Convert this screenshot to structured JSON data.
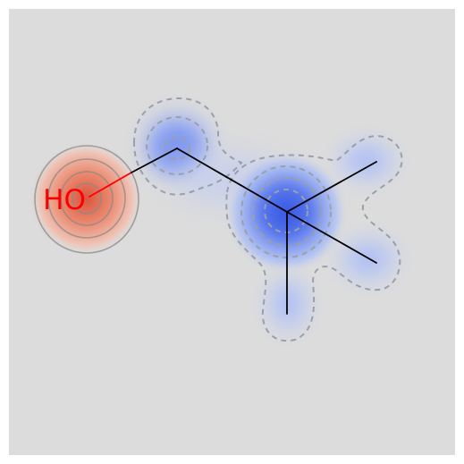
{
  "molecule": {
    "atom_labels": [
      {
        "id": "hydroxyl",
        "text": "HO",
        "color": "#ff0000"
      }
    ]
  },
  "colors": {
    "background": "#dcdcdc",
    "bond": "#000000",
    "hetero_bond": "#ff0000",
    "positive_contribution": "#e8664b",
    "negative_contribution": "#3f64e8",
    "positive_contour": "#8a8a8a",
    "negative_contour": "#9aa0aa"
  },
  "contour_styles": {
    "positive": "solid",
    "negative": "dashed"
  }
}
